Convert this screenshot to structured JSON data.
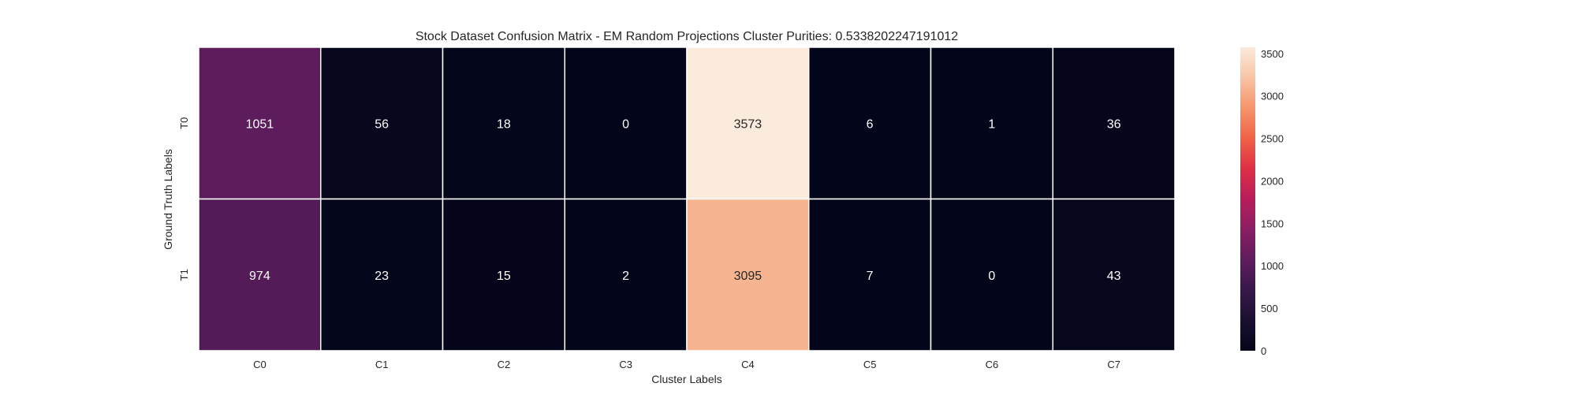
{
  "chart_data": {
    "type": "heatmap",
    "title": "Stock Dataset Confusion Matrix - EM Random Projections Cluster Purities: 0.5338202247191012",
    "xlabel": "Cluster Labels",
    "ylabel": "Ground Truth Labels",
    "x_categories": [
      "C0",
      "C1",
      "C2",
      "C3",
      "C4",
      "C5",
      "C6",
      "C7"
    ],
    "y_categories": [
      "T0",
      "T1"
    ],
    "values": [
      [
        1051,
        56,
        18,
        0,
        3573,
        6,
        1,
        36
      ],
      [
        974,
        23,
        15,
        2,
        3095,
        7,
        0,
        43
      ]
    ],
    "colorbar": {
      "min": 0,
      "max": 3573,
      "ticks": [
        0,
        500,
        1000,
        1500,
        2000,
        2500,
        3000,
        3500
      ],
      "colormap": "rocket"
    }
  }
}
